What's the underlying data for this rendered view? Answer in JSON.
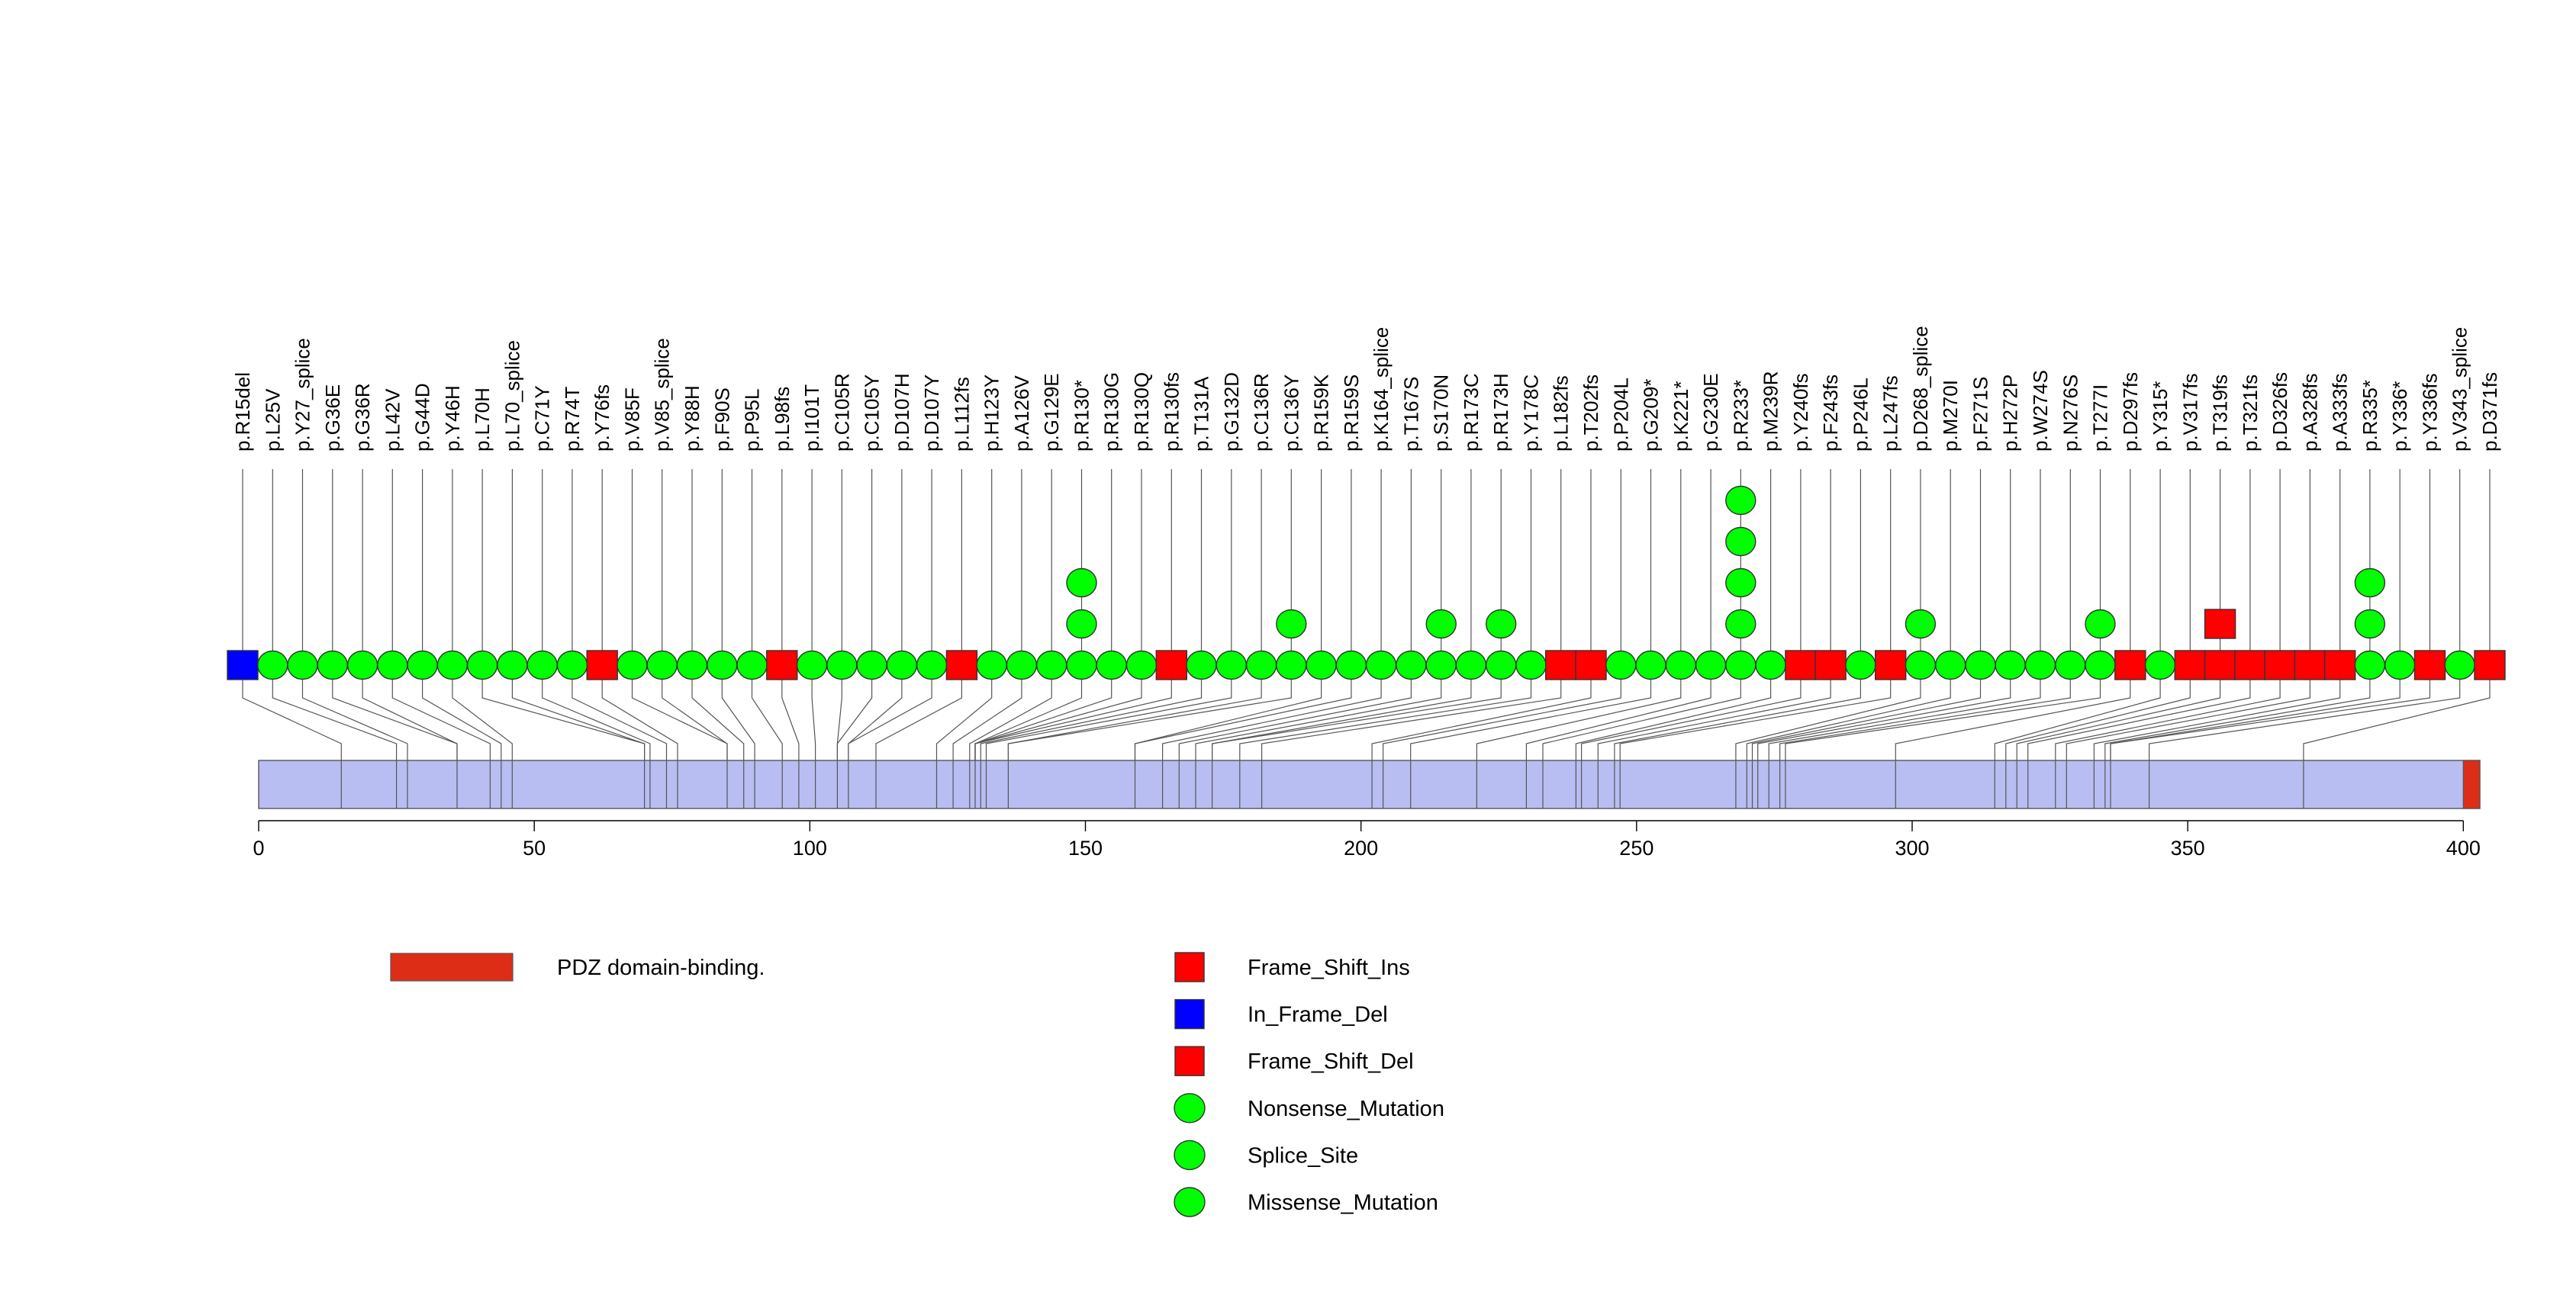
{
  "chart_data": {
    "type": "lollipop",
    "protein_length": 403,
    "xlim": [
      0,
      403
    ],
    "x_ticks": [
      0,
      50,
      100,
      150,
      200,
      250,
      300,
      350,
      400
    ],
    "domains": [
      {
        "name": "PDZ domain-binding.",
        "start": 400,
        "end": 403,
        "color": "#DE2D16"
      }
    ],
    "mutation_types": [
      {
        "name": "Frame_Shift_Ins",
        "shape": "square",
        "color": "#FF0000"
      },
      {
        "name": "In_Frame_Del",
        "shape": "square",
        "color": "#0000FF"
      },
      {
        "name": "Frame_Shift_Del",
        "shape": "square",
        "color": "#FF0000"
      },
      {
        "name": "Nonsense_Mutation",
        "shape": "circle",
        "color": "#00FF00"
      },
      {
        "name": "Splice_Site",
        "shape": "circle",
        "color": "#00FF00"
      },
      {
        "name": "Missense_Mutation",
        "shape": "circle",
        "color": "#00FF00"
      }
    ],
    "mutations": [
      {
        "label": "p.R15del",
        "pos": 15,
        "type": "In_Frame_Del",
        "count": 1
      },
      {
        "label": "p.L25V",
        "pos": 25,
        "type": "Missense_Mutation",
        "count": 1
      },
      {
        "label": "p.Y27_splice",
        "pos": 27,
        "type": "Splice_Site",
        "count": 1
      },
      {
        "label": "p.G36E",
        "pos": 36,
        "type": "Missense_Mutation",
        "count": 1
      },
      {
        "label": "p.G36R",
        "pos": 36,
        "type": "Missense_Mutation",
        "count": 1
      },
      {
        "label": "p.L42V",
        "pos": 42,
        "type": "Missense_Mutation",
        "count": 1
      },
      {
        "label": "p.G44D",
        "pos": 44,
        "type": "Missense_Mutation",
        "count": 1
      },
      {
        "label": "p.Y46H",
        "pos": 46,
        "type": "Missense_Mutation",
        "count": 1
      },
      {
        "label": "p.L70H",
        "pos": 70,
        "type": "Missense_Mutation",
        "count": 1
      },
      {
        "label": "p.L70_splice",
        "pos": 70,
        "type": "Splice_Site",
        "count": 1
      },
      {
        "label": "p.C71Y",
        "pos": 71,
        "type": "Missense_Mutation",
        "count": 1
      },
      {
        "label": "p.R74T",
        "pos": 74,
        "type": "Missense_Mutation",
        "count": 1
      },
      {
        "label": "p.Y76fs",
        "pos": 76,
        "type": "Frame_Shift_Del",
        "count": 1
      },
      {
        "label": "p.V85F",
        "pos": 85,
        "type": "Missense_Mutation",
        "count": 1
      },
      {
        "label": "p.V85_splice",
        "pos": 85,
        "type": "Splice_Site",
        "count": 1
      },
      {
        "label": "p.Y88H",
        "pos": 88,
        "type": "Missense_Mutation",
        "count": 1
      },
      {
        "label": "p.F90S",
        "pos": 90,
        "type": "Missense_Mutation",
        "count": 1
      },
      {
        "label": "p.P95L",
        "pos": 95,
        "type": "Missense_Mutation",
        "count": 1
      },
      {
        "label": "p.L98fs",
        "pos": 98,
        "type": "Frame_Shift_Del",
        "count": 1
      },
      {
        "label": "p.I101T",
        "pos": 101,
        "type": "Missense_Mutation",
        "count": 1
      },
      {
        "label": "p.C105R",
        "pos": 105,
        "type": "Missense_Mutation",
        "count": 1
      },
      {
        "label": "p.C105Y",
        "pos": 105,
        "type": "Missense_Mutation",
        "count": 1
      },
      {
        "label": "p.D107H",
        "pos": 107,
        "type": "Missense_Mutation",
        "count": 1
      },
      {
        "label": "p.D107Y",
        "pos": 107,
        "type": "Missense_Mutation",
        "count": 1
      },
      {
        "label": "p.L112fs",
        "pos": 112,
        "type": "Frame_Shift_Del",
        "count": 1
      },
      {
        "label": "p.H123Y",
        "pos": 123,
        "type": "Missense_Mutation",
        "count": 1
      },
      {
        "label": "p.A126V",
        "pos": 126,
        "type": "Missense_Mutation",
        "count": 1
      },
      {
        "label": "p.G129E",
        "pos": 129,
        "type": "Missense_Mutation",
        "count": 1
      },
      {
        "label": "p.R130*",
        "pos": 130,
        "type": "Nonsense_Mutation",
        "count": 3
      },
      {
        "label": "p.R130G",
        "pos": 130,
        "type": "Missense_Mutation",
        "count": 1
      },
      {
        "label": "p.R130Q",
        "pos": 130,
        "type": "Missense_Mutation",
        "count": 1
      },
      {
        "label": "p.R130fs",
        "pos": 130,
        "type": "Frame_Shift_Del",
        "count": 1
      },
      {
        "label": "p.T131A",
        "pos": 131,
        "type": "Missense_Mutation",
        "count": 1
      },
      {
        "label": "p.G132D",
        "pos": 132,
        "type": "Missense_Mutation",
        "count": 1
      },
      {
        "label": "p.C136R",
        "pos": 136,
        "type": "Missense_Mutation",
        "count": 1
      },
      {
        "label": "p.C136Y",
        "pos": 136,
        "type": "Missense_Mutation",
        "count": 2
      },
      {
        "label": "p.R159K",
        "pos": 159,
        "type": "Missense_Mutation",
        "count": 1
      },
      {
        "label": "p.R159S",
        "pos": 159,
        "type": "Missense_Mutation",
        "count": 1
      },
      {
        "label": "p.K164_splice",
        "pos": 164,
        "type": "Splice_Site",
        "count": 1
      },
      {
        "label": "p.T167S",
        "pos": 167,
        "type": "Missense_Mutation",
        "count": 1
      },
      {
        "label": "p.S170N",
        "pos": 170,
        "type": "Missense_Mutation",
        "count": 2
      },
      {
        "label": "p.R173C",
        "pos": 173,
        "type": "Missense_Mutation",
        "count": 1
      },
      {
        "label": "p.R173H",
        "pos": 173,
        "type": "Missense_Mutation",
        "count": 2
      },
      {
        "label": "p.Y178C",
        "pos": 178,
        "type": "Missense_Mutation",
        "count": 1
      },
      {
        "label": "p.L182fs",
        "pos": 182,
        "type": "Frame_Shift_Del",
        "count": 1
      },
      {
        "label": "p.T202fs",
        "pos": 202,
        "type": "Frame_Shift_Del",
        "count": 1
      },
      {
        "label": "p.P204L",
        "pos": 204,
        "type": "Missense_Mutation",
        "count": 1
      },
      {
        "label": "p.G209*",
        "pos": 209,
        "type": "Nonsense_Mutation",
        "count": 1
      },
      {
        "label": "p.K221*",
        "pos": 221,
        "type": "Nonsense_Mutation",
        "count": 1
      },
      {
        "label": "p.G230E",
        "pos": 230,
        "type": "Missense_Mutation",
        "count": 1
      },
      {
        "label": "p.R233*",
        "pos": 233,
        "type": "Nonsense_Mutation",
        "count": 5
      },
      {
        "label": "p.M239R",
        "pos": 239,
        "type": "Missense_Mutation",
        "count": 1
      },
      {
        "label": "p.Y240fs",
        "pos": 240,
        "type": "Frame_Shift_Del",
        "count": 1
      },
      {
        "label": "p.F243fs",
        "pos": 243,
        "type": "Frame_Shift_Del",
        "count": 1
      },
      {
        "label": "p.P246L",
        "pos": 246,
        "type": "Missense_Mutation",
        "count": 1
      },
      {
        "label": "p.L247fs",
        "pos": 247,
        "type": "Frame_Shift_Del",
        "count": 1
      },
      {
        "label": "p.D268_splice",
        "pos": 268,
        "type": "Splice_Site",
        "count": 2
      },
      {
        "label": "p.M270I",
        "pos": 270,
        "type": "Missense_Mutation",
        "count": 1
      },
      {
        "label": "p.F271S",
        "pos": 271,
        "type": "Missense_Mutation",
        "count": 1
      },
      {
        "label": "p.H272P",
        "pos": 272,
        "type": "Missense_Mutation",
        "count": 1
      },
      {
        "label": "p.W274S",
        "pos": 274,
        "type": "Missense_Mutation",
        "count": 1
      },
      {
        "label": "p.N276S",
        "pos": 276,
        "type": "Missense_Mutation",
        "count": 1
      },
      {
        "label": "p.T277I",
        "pos": 277,
        "type": "Missense_Mutation",
        "count": 2
      },
      {
        "label": "p.D297fs",
        "pos": 297,
        "type": "Frame_Shift_Del",
        "count": 1
      },
      {
        "label": "p.Y315*",
        "pos": 315,
        "type": "Nonsense_Mutation",
        "count": 1
      },
      {
        "label": "p.V317fs",
        "pos": 317,
        "type": "Frame_Shift_Del",
        "count": 1
      },
      {
        "label": "p.T319fs",
        "pos": 319,
        "type": "Frame_Shift_Ins",
        "count": 2
      },
      {
        "label": "p.T321fs",
        "pos": 321,
        "type": "Frame_Shift_Del",
        "count": 1
      },
      {
        "label": "p.D326fs",
        "pos": 326,
        "type": "Frame_Shift_Del",
        "count": 1
      },
      {
        "label": "p.A328fs",
        "pos": 328,
        "type": "Frame_Shift_Del",
        "count": 1
      },
      {
        "label": "p.A333fs",
        "pos": 333,
        "type": "Frame_Shift_Del",
        "count": 1
      },
      {
        "label": "p.R335*",
        "pos": 335,
        "type": "Nonsense_Mutation",
        "count": 3
      },
      {
        "label": "p.Y336*",
        "pos": 336,
        "type": "Nonsense_Mutation",
        "count": 1
      },
      {
        "label": "p.Y336fs",
        "pos": 336,
        "type": "Frame_Shift_Del",
        "count": 1
      },
      {
        "label": "p.V343_splice",
        "pos": 343,
        "type": "Splice_Site",
        "count": 1
      },
      {
        "label": "p.D371fs",
        "pos": 371,
        "type": "Frame_Shift_Del",
        "count": 1
      }
    ]
  }
}
